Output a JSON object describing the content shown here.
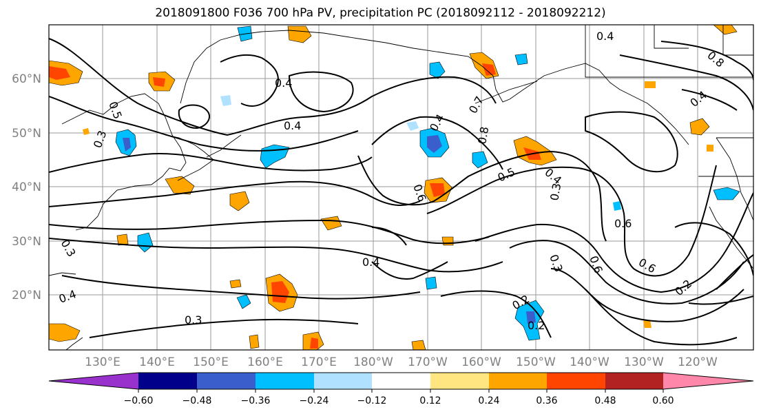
{
  "title": "2018091800 F036 700 hPa PV, precipitation PC (2018092112 - 2018092212)",
  "map": {
    "lat_labels": [
      "60°N",
      "50°N",
      "40°N",
      "30°N",
      "20°N"
    ],
    "lon_labels": [
      "130°E",
      "140°E",
      "150°E",
      "160°E",
      "170°E",
      "180°W",
      "170°W",
      "160°W",
      "150°W",
      "140°W",
      "130°W",
      "120°W"
    ],
    "contour_labels": [
      {
        "text": "0.4"
      },
      {
        "text": "0.3"
      },
      {
        "text": "0.5"
      },
      {
        "text": "0.4"
      },
      {
        "text": "0.4"
      },
      {
        "text": "0.7"
      },
      {
        "text": "0.5"
      },
      {
        "text": "0.6"
      },
      {
        "text": "0.8"
      },
      {
        "text": "0.4"
      },
      {
        "text": "0.3"
      },
      {
        "text": "0.6"
      },
      {
        "text": "0.6"
      },
      {
        "text": "0.6"
      },
      {
        "text": "0.4"
      },
      {
        "text": "0.3"
      },
      {
        "text": "0.2"
      },
      {
        "text": "0.2"
      },
      {
        "text": "0.3"
      },
      {
        "text": "0.4"
      },
      {
        "text": "0.3"
      },
      {
        "text": "0.2"
      },
      {
        "text": "0.4"
      },
      {
        "text": "0.8"
      },
      {
        "text": "0.4"
      }
    ]
  },
  "colorbar": {
    "tick_labels": [
      "−0.60",
      "−0.48",
      "−0.36",
      "−0.24",
      "−0.12",
      "0.12",
      "0.24",
      "0.36",
      "0.48",
      "0.60"
    ],
    "colors": [
      "#9932cc",
      "#00008b",
      "#3a5fcd",
      "#00bfff",
      "#b0e2ff",
      "#ffffff",
      "#ffe680",
      "#ffa500",
      "#ff4500",
      "#b22222",
      "#ff88aa"
    ]
  }
}
